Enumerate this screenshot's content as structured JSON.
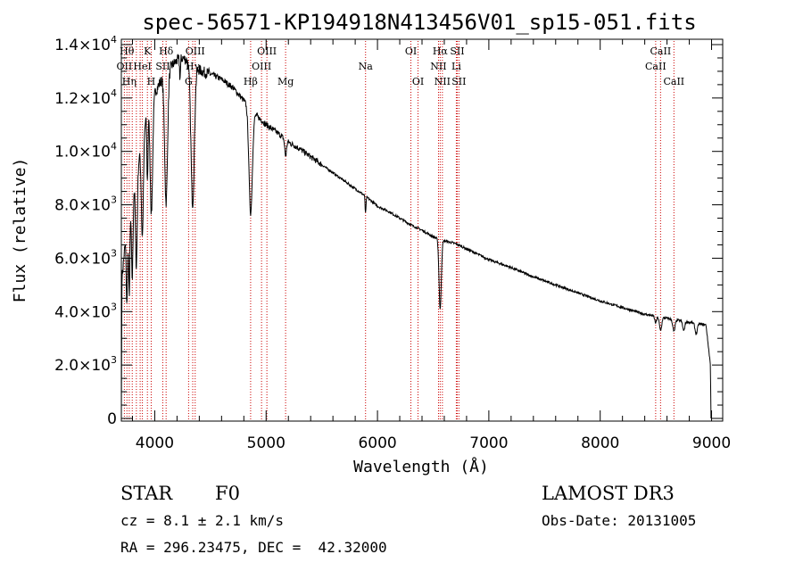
{
  "chart_data": {
    "type": "line",
    "title": "spec-56571-KP194918N413456V01_sp15-051.fits",
    "xlabel": "Wavelength (Å)",
    "ylabel": "Flux (relative)",
    "xlim": [
      3700,
      9100
    ],
    "ylim": [
      -100,
      14200
    ],
    "x_ticks": [
      {
        "value": 4000,
        "label": "4000"
      },
      {
        "value": 5000,
        "label": "5000"
      },
      {
        "value": 6000,
        "label": "6000"
      },
      {
        "value": 7000,
        "label": "7000"
      },
      {
        "value": 8000,
        "label": "8000"
      },
      {
        "value": 9000,
        "label": "9000"
      }
    ],
    "y_ticks": [
      {
        "value": 0,
        "mant": "0",
        "exp": ""
      },
      {
        "value": 2000,
        "mant": "2.0×10",
        "exp": "3"
      },
      {
        "value": 4000,
        "mant": "4.0×10",
        "exp": "3"
      },
      {
        "value": 6000,
        "mant": "6.0×10",
        "exp": "3"
      },
      {
        "value": 8000,
        "mant": "8.0×10",
        "exp": "3"
      },
      {
        "value": 10000,
        "mant": "1.0×10",
        "exp": "4"
      },
      {
        "value": 12000,
        "mant": "1.2×10",
        "exp": "4"
      },
      {
        "value": 14000,
        "mant": "1.4×10",
        "exp": "4"
      }
    ],
    "series": [
      {
        "name": "flux",
        "color": "#000000",
        "continuum": [
          [
            3700,
            0
          ],
          [
            3705,
            5200
          ],
          [
            3740,
            6800
          ],
          [
            3800,
            8500
          ],
          [
            3840,
            9300
          ],
          [
            3880,
            10200
          ],
          [
            3920,
            11200
          ],
          [
            3960,
            11800
          ],
          [
            4000,
            12200
          ],
          [
            4050,
            12600
          ],
          [
            4100,
            12900
          ],
          [
            4150,
            13200
          ],
          [
            4200,
            13400
          ],
          [
            4250,
            13500
          ],
          [
            4300,
            13400
          ],
          [
            4350,
            13200
          ],
          [
            4400,
            13050
          ],
          [
            4450,
            12950
          ],
          [
            4500,
            12900
          ],
          [
            4600,
            12700
          ],
          [
            4700,
            12400
          ],
          [
            4800,
            11900
          ],
          [
            4900,
            11400
          ],
          [
            5000,
            11000
          ],
          [
            5100,
            10700
          ],
          [
            5200,
            10350
          ],
          [
            5300,
            10100
          ],
          [
            5400,
            9800
          ],
          [
            5500,
            9500
          ],
          [
            5600,
            9200
          ],
          [
            5700,
            8900
          ],
          [
            5800,
            8600
          ],
          [
            5900,
            8300
          ],
          [
            6000,
            7950
          ],
          [
            6100,
            7750
          ],
          [
            6200,
            7500
          ],
          [
            6300,
            7250
          ],
          [
            6400,
            7050
          ],
          [
            6500,
            6800
          ],
          [
            6600,
            6650
          ],
          [
            6700,
            6550
          ],
          [
            6800,
            6350
          ],
          [
            6900,
            6150
          ],
          [
            7000,
            5950
          ],
          [
            7200,
            5650
          ],
          [
            7400,
            5300
          ],
          [
            7600,
            5000
          ],
          [
            7800,
            4700
          ],
          [
            8000,
            4400
          ],
          [
            8200,
            4150
          ],
          [
            8400,
            3900
          ],
          [
            8600,
            3750
          ],
          [
            8800,
            3600
          ],
          [
            8950,
            3500
          ],
          [
            8990,
            2000
          ],
          [
            8995,
            0
          ]
        ],
        "absorptions": [
          {
            "center": 3750,
            "depth": 2800,
            "width": 6
          },
          {
            "center": 3771,
            "depth": 3000,
            "width": 6
          },
          {
            "center": 3798,
            "depth": 3200,
            "width": 7
          },
          {
            "center": 3835,
            "depth": 3500,
            "width": 8
          },
          {
            "center": 3889,
            "depth": 3600,
            "width": 9
          },
          {
            "center": 3934,
            "depth": 2500,
            "width": 5
          },
          {
            "center": 3970,
            "depth": 4200,
            "width": 11
          },
          {
            "center": 4102,
            "depth": 4800,
            "width": 13
          },
          {
            "center": 4227,
            "depth": 700,
            "width": 4
          },
          {
            "center": 4340,
            "depth": 5200,
            "width": 15
          },
          {
            "center": 4861,
            "depth": 3900,
            "width": 15
          },
          {
            "center": 5175,
            "depth": 600,
            "width": 8
          },
          {
            "center": 5893,
            "depth": 650,
            "width": 4
          },
          {
            "center": 6563,
            "depth": 2600,
            "width": 10
          },
          {
            "center": 8498,
            "depth": 250,
            "width": 8
          },
          {
            "center": 8542,
            "depth": 500,
            "width": 10
          },
          {
            "center": 8662,
            "depth": 450,
            "width": 10
          },
          {
            "center": 8750,
            "depth": 350,
            "width": 9
          },
          {
            "center": 8862,
            "depth": 400,
            "width": 10
          }
        ]
      }
    ],
    "spectral_lines": {
      "color": "#cc0000",
      "row_label_order": [
        "top",
        "middle",
        "bottom"
      ],
      "lines": [
        {
          "wavelength": 3727,
          "label": "OII",
          "row": "middle"
        },
        {
          "wavelength": 3750,
          "label": "Hθ",
          "row": "top"
        },
        {
          "wavelength": 3771,
          "label": "Hη",
          "row": "bottom"
        },
        {
          "wavelength": 3798,
          "label": "",
          "row": "top"
        },
        {
          "wavelength": 3835,
          "label": "",
          "row": "top"
        },
        {
          "wavelength": 3869,
          "label": "",
          "row": "top"
        },
        {
          "wavelength": 3889,
          "label": "HeI",
          "row": "middle"
        },
        {
          "wavelength": 3934,
          "label": "K",
          "row": "top"
        },
        {
          "wavelength": 3968,
          "label": "H",
          "row": "bottom"
        },
        {
          "wavelength": 4072,
          "label": "SII",
          "row": "middle"
        },
        {
          "wavelength": 4102,
          "label": "Hδ",
          "row": "top"
        },
        {
          "wavelength": 4304,
          "label": "G",
          "row": "bottom"
        },
        {
          "wavelength": 4341,
          "label": "Hγ",
          "row": "middle"
        },
        {
          "wavelength": 4363,
          "label": "OIII",
          "row": "top"
        },
        {
          "wavelength": 4861,
          "label": "Hβ",
          "row": "bottom"
        },
        {
          "wavelength": 4959,
          "label": "OIII",
          "row": "middle"
        },
        {
          "wavelength": 5007,
          "label": "OIII",
          "row": "top"
        },
        {
          "wavelength": 5175,
          "label": "Mg",
          "row": "bottom"
        },
        {
          "wavelength": 5893,
          "label": "Na",
          "row": "middle"
        },
        {
          "wavelength": 6300,
          "label": "OI",
          "row": "top"
        },
        {
          "wavelength": 6364,
          "label": "OI",
          "row": "bottom"
        },
        {
          "wavelength": 6548,
          "label": "NII",
          "row": "middle"
        },
        {
          "wavelength": 6563,
          "label": "Hα",
          "row": "top"
        },
        {
          "wavelength": 6583,
          "label": "NII",
          "row": "bottom"
        },
        {
          "wavelength": 6708,
          "label": "Li",
          "row": "middle"
        },
        {
          "wavelength": 6716,
          "label": "SII",
          "row": "top"
        },
        {
          "wavelength": 6731,
          "label": "SII",
          "row": "bottom"
        },
        {
          "wavelength": 8498,
          "label": "CaII",
          "row": "middle"
        },
        {
          "wavelength": 8542,
          "label": "CaII",
          "row": "top"
        },
        {
          "wavelength": 8662,
          "label": "CaII",
          "row": "bottom"
        }
      ]
    }
  },
  "info": {
    "object_class": "STAR",
    "subclass": "F0",
    "survey": "LAMOST DR3",
    "redshift_text": "cz = 8.1 ± 2.1 km/s",
    "obs_date_text": "Obs-Date: 20131005",
    "coords_text": "RA = 296.23475, DEC =  42.32000"
  }
}
